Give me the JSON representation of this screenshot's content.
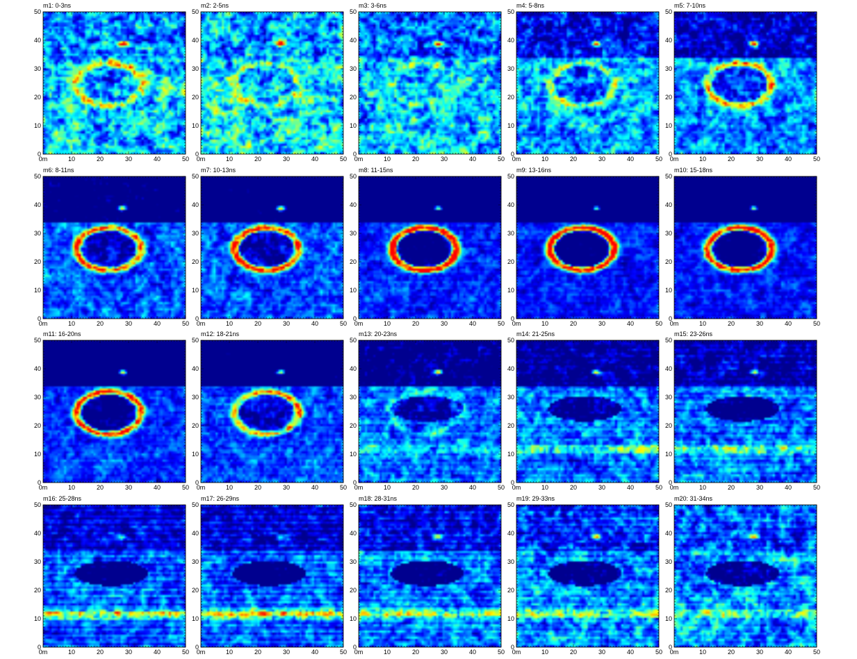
{
  "figure": {
    "panels": [
      {
        "title": "m1: 0-3ns"
      },
      {
        "title": "m2: 2-5ns"
      },
      {
        "title": "m3: 3-6ns"
      },
      {
        "title": "m4: 5-8ns"
      },
      {
        "title": "m5: 7-10ns"
      },
      {
        "title": "m6: 8-11ns"
      },
      {
        "title": "m7: 10-13ns"
      },
      {
        "title": "m8: 11-15ns"
      },
      {
        "title": "m9: 13-16ns"
      },
      {
        "title": "m10: 15-18ns"
      },
      {
        "title": "m11: 16-20ns"
      },
      {
        "title": "m12: 18-21ns"
      },
      {
        "title": "m13: 20-23ns"
      },
      {
        "title": "m14: 21-25ns"
      },
      {
        "title": "m15: 23-26ns"
      },
      {
        "title": "m16: 25-28ns"
      },
      {
        "title": "m17: 26-29ns"
      },
      {
        "title": "m18: 28-31ns"
      },
      {
        "title": "m19: 29-33ns"
      },
      {
        "title": "m20: 31-34ns"
      }
    ],
    "x_tick_labels": [
      "0m",
      "10",
      "20",
      "30",
      "40",
      "50"
    ],
    "y_tick_labels": [
      "0",
      "10",
      "20",
      "30",
      "40",
      "50"
    ],
    "axis_range": [
      0,
      50
    ],
    "colormap": [
      "#00008f",
      "#0000ff",
      "#0080ff",
      "#00ffff",
      "#80ff80",
      "#ffff00",
      "#ff8000",
      "#ff0000"
    ]
  }
}
